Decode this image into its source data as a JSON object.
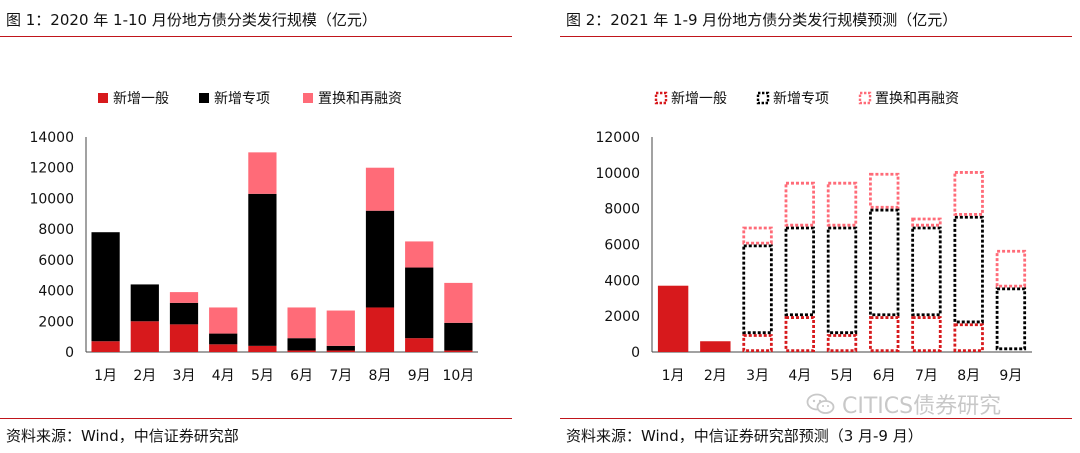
{
  "panel1": {
    "title": "图 1：2020 年 1-10 月份地方债分类发行规模（亿元）",
    "source": "资料来源：Wind，中信证券研究部"
  },
  "panel2": {
    "title": "图 2：2021 年 1-9 月份地方债分类发行规模预测（亿元）",
    "source": "资料来源：Wind，中信证券研究部预测（3 月-9 月）"
  },
  "watermark": "CITICS债券研究",
  "colors": {
    "general": "#d7191c",
    "special": "#000000",
    "refinance": "#ff6b78",
    "rule": "#c0151b"
  },
  "chart_data": [
    {
      "type": "bar",
      "stacked": true,
      "title": "",
      "categories": [
        "1月",
        "2月",
        "3月",
        "4月",
        "5月",
        "6月",
        "7月",
        "8月",
        "9月",
        "10月"
      ],
      "series": [
        {
          "name": "新增一般",
          "values": [
            700,
            2000,
            1800,
            500,
            400,
            100,
            100,
            2900,
            900,
            100
          ]
        },
        {
          "name": "新增专项",
          "values": [
            7100,
            2400,
            1400,
            700,
            9900,
            800,
            300,
            6300,
            4600,
            1800
          ]
        },
        {
          "name": "置换和再融资",
          "values": [
            0,
            0,
            700,
            1700,
            2700,
            2000,
            2300,
            2800,
            1700,
            2600
          ]
        }
      ],
      "ylim": [
        0,
        14000
      ],
      "yticks": [
        "0",
        "2000",
        "4000",
        "6000",
        "8000",
        "10000",
        "12000",
        "14000"
      ],
      "legend": "top"
    },
    {
      "type": "bar",
      "stacked": true,
      "title": "",
      "categories": [
        "1月",
        "2月",
        "3月",
        "4月",
        "5月",
        "6月",
        "7月",
        "8月",
        "9月"
      ],
      "series": [
        {
          "name": "新增一般",
          "values": [
            3700,
            600,
            1000,
            2000,
            1000,
            2000,
            2000,
            1600,
            100
          ]
        },
        {
          "name": "新增专项",
          "values": [
            0,
            0,
            5000,
            5000,
            6000,
            6000,
            5000,
            6000,
            3500
          ]
        },
        {
          "name": "置换和再融资",
          "values": [
            0,
            0,
            1000,
            2500,
            2500,
            2000,
            500,
            2500,
            2100
          ]
        }
      ],
      "forecast_months": [
        "3月",
        "4月",
        "5月",
        "6月",
        "7月",
        "8月",
        "9月"
      ],
      "ylim": [
        0,
        12000
      ],
      "yticks": [
        "0",
        "2000",
        "4000",
        "6000",
        "8000",
        "10000",
        "12000"
      ],
      "legend": "top"
    }
  ]
}
